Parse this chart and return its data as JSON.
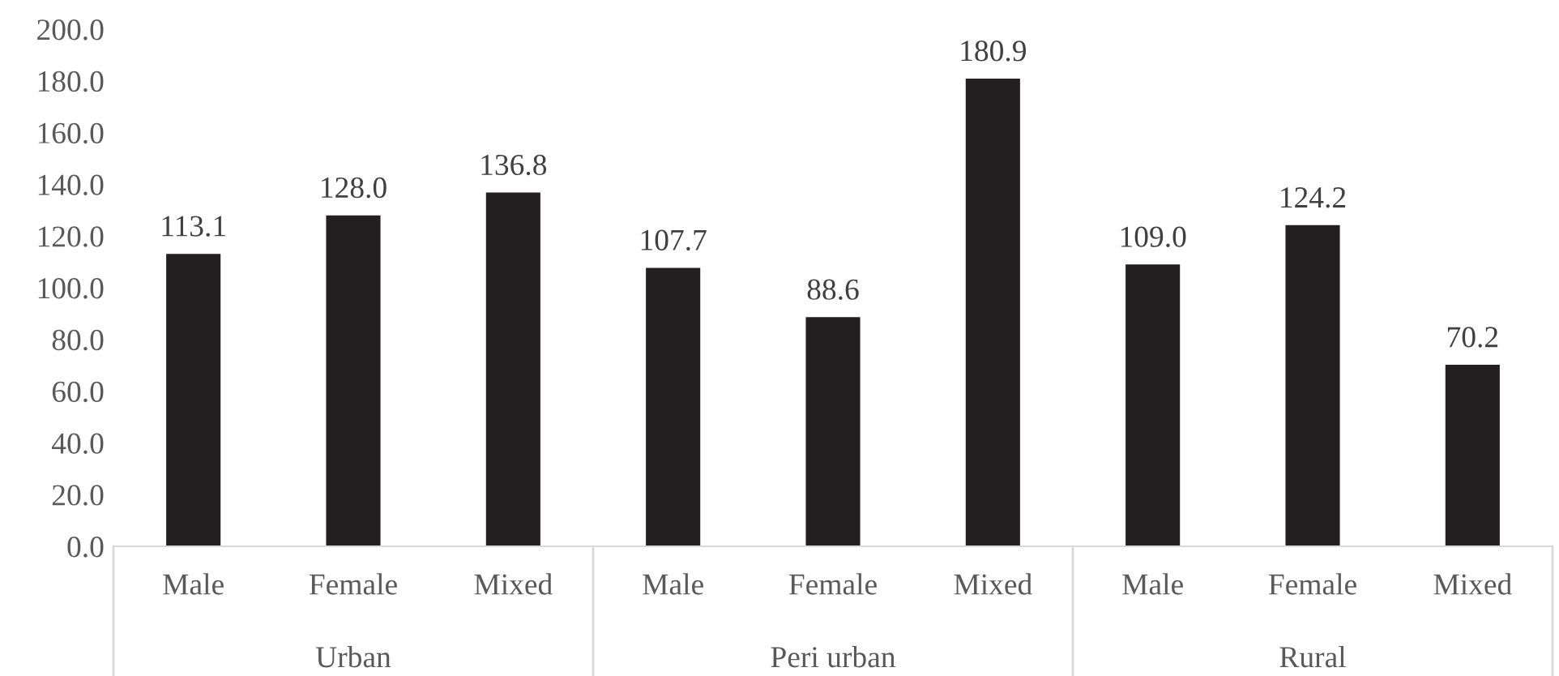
{
  "chart_data": {
    "type": "bar",
    "categories": [
      "Male",
      "Female",
      "Mixed",
      "Male",
      "Female",
      "Mixed",
      "Male",
      "Female",
      "Mixed"
    ],
    "values": [
      113.1,
      128.0,
      136.8,
      107.7,
      88.6,
      180.9,
      109.0,
      124.2,
      70.2
    ],
    "value_labels": [
      "113.1",
      "128.0",
      "136.8",
      "107.7",
      "88.6",
      "180.9",
      "109.0",
      "124.2",
      "70.2"
    ],
    "color": "#231f20",
    "ylim": [
      0,
      200
    ],
    "yticks": [
      {
        "value": 0,
        "label": "0.0"
      },
      {
        "value": 20,
        "label": "20.0"
      },
      {
        "value": 40,
        "label": "40.0"
      },
      {
        "value": 60,
        "label": "60.0"
      },
      {
        "value": 80,
        "label": "80.0"
      },
      {
        "value": 100,
        "label": "100.0"
      },
      {
        "value": 120,
        "label": "120.0"
      },
      {
        "value": 140,
        "label": "140.0"
      },
      {
        "value": 160,
        "label": "160.0"
      },
      {
        "value": 180,
        "label": "180.0"
      },
      {
        "value": 200,
        "label": "200.0"
      }
    ],
    "annotations": [
      "Urban",
      "Peri urban",
      "Rural"
    ],
    "grid": false,
    "legend": false
  }
}
